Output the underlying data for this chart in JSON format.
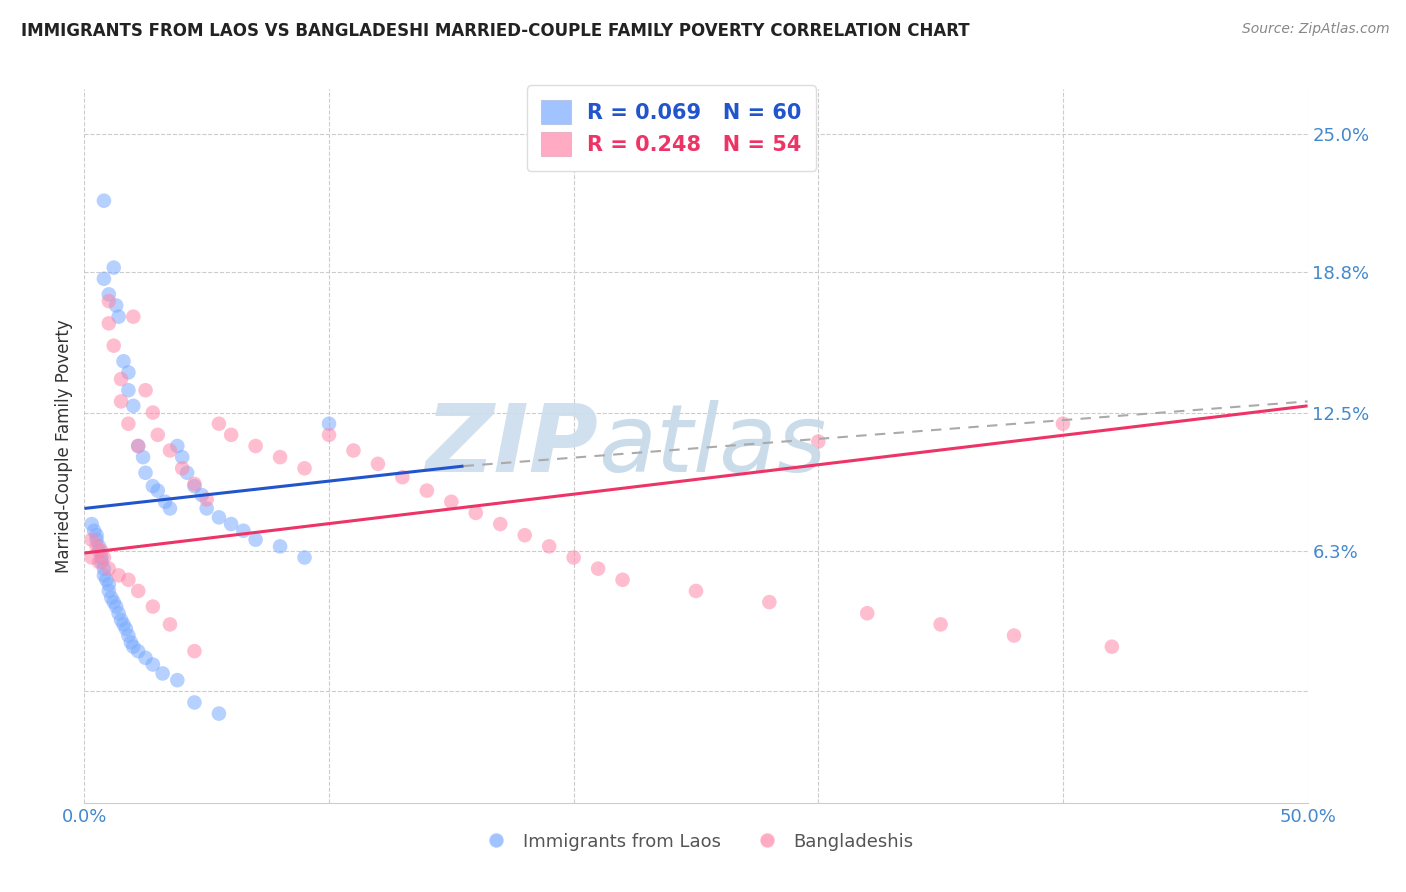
{
  "title": "IMMIGRANTS FROM LAOS VS BANGLADESHI MARRIED-COUPLE FAMILY POVERTY CORRELATION CHART",
  "source": "Source: ZipAtlas.com",
  "ylabel": "Married-Couple Family Poverty",
  "x_min": 0.0,
  "x_max": 0.5,
  "y_min": -0.05,
  "y_max": 0.27,
  "x_tick_positions": [
    0.0,
    0.1,
    0.2,
    0.3,
    0.4,
    0.5
  ],
  "x_tick_labels": [
    "0.0%",
    "",
    "",
    "",
    "",
    "50.0%"
  ],
  "y_tick_positions": [
    0.0,
    0.063,
    0.125,
    0.188,
    0.25
  ],
  "y_tick_labels": [
    "",
    "6.3%",
    "12.5%",
    "18.8%",
    "25.0%"
  ],
  "series1_label": "Immigrants from Laos",
  "series2_label": "Bangladeshis",
  "series1_color": "#7aaaff",
  "series2_color": "#ff88aa",
  "trendline1_color": "#2255cc",
  "trendline2_color": "#ee3366",
  "dashed_line_color": "#aaaaaa",
  "background_color": "#ffffff",
  "trendline1_x": [
    0.0,
    0.155
  ],
  "trendline1_y": [
    0.082,
    0.101
  ],
  "trendline2_x": [
    0.0,
    0.5
  ],
  "trendline2_y": [
    0.062,
    0.128
  ],
  "dashed_line_x": [
    0.155,
    0.5
  ],
  "dashed_line_y": [
    0.101,
    0.13
  ],
  "blue_x": [
    0.008,
    0.012,
    0.008,
    0.01,
    0.013,
    0.014,
    0.016,
    0.018,
    0.018,
    0.02,
    0.022,
    0.024,
    0.025,
    0.028,
    0.03,
    0.033,
    0.035,
    0.038,
    0.04,
    0.042,
    0.045,
    0.048,
    0.05,
    0.055,
    0.06,
    0.065,
    0.07,
    0.08,
    0.09,
    0.1,
    0.003,
    0.004,
    0.005,
    0.005,
    0.006,
    0.006,
    0.007,
    0.007,
    0.008,
    0.008,
    0.009,
    0.01,
    0.01,
    0.011,
    0.012,
    0.013,
    0.014,
    0.015,
    0.016,
    0.017,
    0.018,
    0.019,
    0.02,
    0.022,
    0.025,
    0.028,
    0.032,
    0.038,
    0.045,
    0.055
  ],
  "blue_y": [
    0.22,
    0.19,
    0.185,
    0.178,
    0.173,
    0.168,
    0.148,
    0.143,
    0.135,
    0.128,
    0.11,
    0.105,
    0.098,
    0.092,
    0.09,
    0.085,
    0.082,
    0.11,
    0.105,
    0.098,
    0.092,
    0.088,
    0.082,
    0.078,
    0.075,
    0.072,
    0.068,
    0.065,
    0.06,
    0.12,
    0.075,
    0.072,
    0.07,
    0.068,
    0.065,
    0.063,
    0.06,
    0.058,
    0.055,
    0.052,
    0.05,
    0.048,
    0.045,
    0.042,
    0.04,
    0.038,
    0.035,
    0.032,
    0.03,
    0.028,
    0.025,
    0.022,
    0.02,
    0.018,
    0.015,
    0.012,
    0.008,
    0.005,
    -0.005,
    -0.01
  ],
  "pink_x": [
    0.003,
    0.005,
    0.007,
    0.008,
    0.01,
    0.01,
    0.012,
    0.015,
    0.015,
    0.018,
    0.02,
    0.022,
    0.025,
    0.028,
    0.03,
    0.035,
    0.04,
    0.045,
    0.05,
    0.055,
    0.06,
    0.07,
    0.08,
    0.09,
    0.1,
    0.11,
    0.12,
    0.13,
    0.14,
    0.15,
    0.16,
    0.17,
    0.18,
    0.19,
    0.2,
    0.21,
    0.22,
    0.25,
    0.28,
    0.3,
    0.32,
    0.35,
    0.38,
    0.4,
    0.42,
    0.003,
    0.006,
    0.01,
    0.014,
    0.018,
    0.022,
    0.028,
    0.035,
    0.045
  ],
  "pink_y": [
    0.068,
    0.065,
    0.063,
    0.06,
    0.175,
    0.165,
    0.155,
    0.14,
    0.13,
    0.12,
    0.168,
    0.11,
    0.135,
    0.125,
    0.115,
    0.108,
    0.1,
    0.093,
    0.086,
    0.12,
    0.115,
    0.11,
    0.105,
    0.1,
    0.115,
    0.108,
    0.102,
    0.096,
    0.09,
    0.085,
    0.08,
    0.075,
    0.07,
    0.065,
    0.06,
    0.055,
    0.05,
    0.045,
    0.04,
    0.112,
    0.035,
    0.03,
    0.025,
    0.12,
    0.02,
    0.06,
    0.058,
    0.055,
    0.052,
    0.05,
    0.045,
    0.038,
    0.03,
    0.018
  ]
}
